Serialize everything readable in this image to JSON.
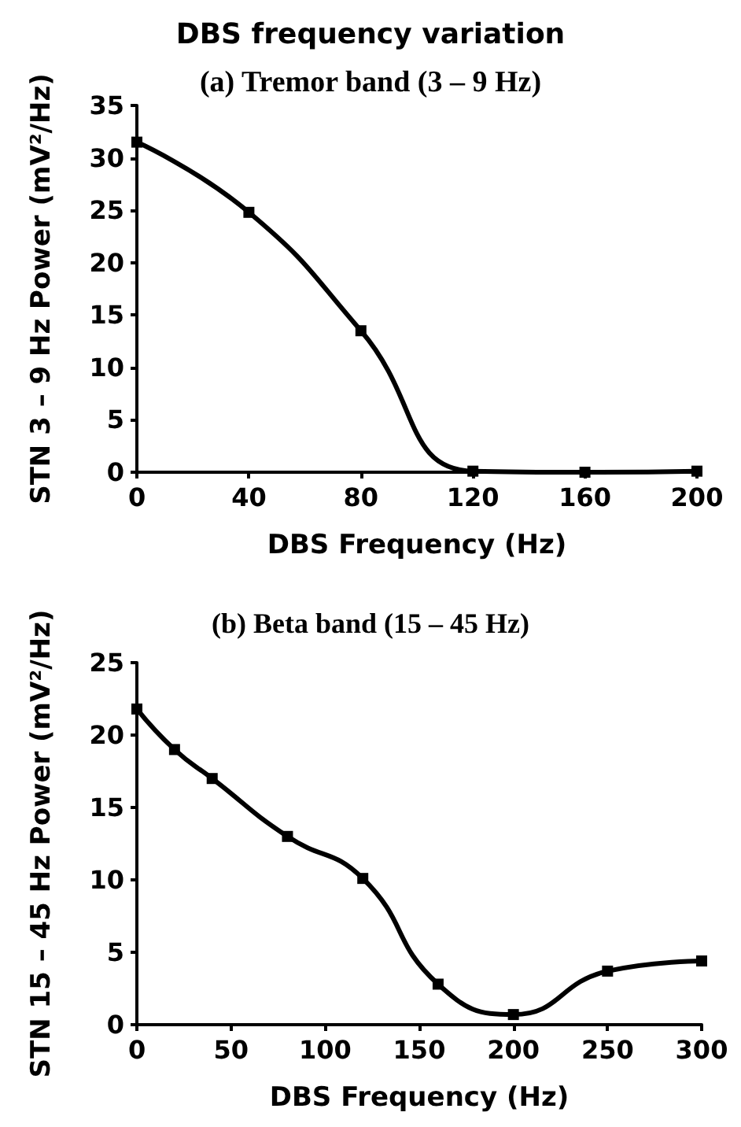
{
  "chart_data": [
    {
      "type": "line",
      "title": "DBS frequency variation",
      "subtitle": "(a) Tremor band (3 – 9 Hz)",
      "xlabel": "DBS Frequency (Hz)",
      "ylabel": "STN 3 – 9 Hz Power (mV²/Hz)",
      "x": [
        0,
        40,
        80,
        120,
        160,
        200
      ],
      "series": [
        {
          "color": "#000000",
          "values": [
            31.5,
            24.8,
            13.5,
            0.1,
            0,
            0.1
          ]
        }
      ],
      "xlim": [
        0,
        200
      ],
      "xticks": [
        0,
        40,
        80,
        120,
        160,
        200
      ],
      "ylim": [
        0,
        35
      ],
      "yticks": [
        0,
        5,
        10,
        15,
        20,
        25,
        30,
        35
      ],
      "grid": false,
      "marker": "square",
      "line_style": "solid"
    },
    {
      "type": "line",
      "title": "(b) Beta band (15 – 45 Hz)",
      "xlabel": "DBS Frequency (Hz)",
      "ylabel": "STN 15 – 45 Hz Power (mV²/Hz)",
      "x": [
        0,
        20,
        40,
        80,
        120,
        160,
        200,
        250,
        300
      ],
      "series": [
        {
          "color": "#000000",
          "values": [
            21.8,
            19,
            17,
            13,
            10.1,
            2.8,
            0.7,
            3.7,
            4.4
          ]
        }
      ],
      "xlim": [
        0,
        300
      ],
      "xticks": [
        0,
        50,
        100,
        150,
        200,
        250,
        300
      ],
      "ylim": [
        0,
        25
      ],
      "yticks": [
        0,
        5,
        10,
        15,
        20,
        25
      ],
      "grid": false,
      "marker": "square",
      "line_style": "solid"
    }
  ]
}
